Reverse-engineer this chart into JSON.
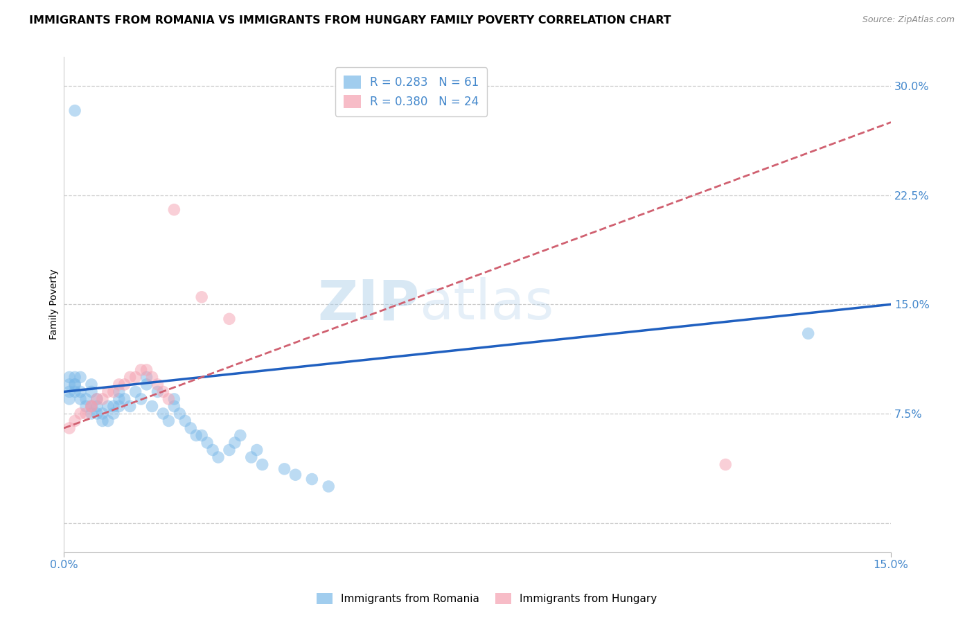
{
  "title": "IMMIGRANTS FROM ROMANIA VS IMMIGRANTS FROM HUNGARY FAMILY POVERTY CORRELATION CHART",
  "source": "Source: ZipAtlas.com",
  "ylabel": "Family Poverty",
  "yticks": [
    0.0,
    0.075,
    0.15,
    0.225,
    0.3
  ],
  "ytick_labels": [
    "",
    "7.5%",
    "15.0%",
    "22.5%",
    "30.0%"
  ],
  "xlim": [
    0.0,
    0.15
  ],
  "ylim": [
    -0.02,
    0.32
  ],
  "legend1_label": "R = 0.283   N = 61",
  "legend2_label": "R = 0.380   N = 24",
  "series1_label": "Immigrants from Romania",
  "series2_label": "Immigrants from Hungary",
  "series1_color": "#7ab8e8",
  "series2_color": "#f5a0b0",
  "line1_color": "#2060c0",
  "line2_color": "#d06070",
  "watermark_part1": "ZIP",
  "watermark_part2": "atlas",
  "romania_x": [
    0.001,
    0.001,
    0.001,
    0.001,
    0.002,
    0.002,
    0.002,
    0.002,
    0.003,
    0.003,
    0.003,
    0.004,
    0.004,
    0.005,
    0.005,
    0.005,
    0.005,
    0.006,
    0.006,
    0.006,
    0.007,
    0.007,
    0.008,
    0.008,
    0.009,
    0.009,
    0.01,
    0.01,
    0.01,
    0.011,
    0.012,
    0.013,
    0.014,
    0.015,
    0.015,
    0.016,
    0.017,
    0.018,
    0.019,
    0.02,
    0.02,
    0.021,
    0.022,
    0.023,
    0.024,
    0.025,
    0.026,
    0.027,
    0.028,
    0.03,
    0.031,
    0.032,
    0.034,
    0.035,
    0.036,
    0.04,
    0.042,
    0.045,
    0.048,
    0.135,
    0.002
  ],
  "romania_y": [
    0.085,
    0.09,
    0.095,
    0.1,
    0.09,
    0.095,
    0.095,
    0.1,
    0.085,
    0.09,
    0.1,
    0.08,
    0.085,
    0.075,
    0.08,
    0.09,
    0.095,
    0.075,
    0.08,
    0.085,
    0.07,
    0.075,
    0.07,
    0.08,
    0.075,
    0.08,
    0.08,
    0.085,
    0.09,
    0.085,
    0.08,
    0.09,
    0.085,
    0.095,
    0.1,
    0.08,
    0.09,
    0.075,
    0.07,
    0.08,
    0.085,
    0.075,
    0.07,
    0.065,
    0.06,
    0.06,
    0.055,
    0.05,
    0.045,
    0.05,
    0.055,
    0.06,
    0.045,
    0.05,
    0.04,
    0.037,
    0.033,
    0.03,
    0.025,
    0.13,
    0.283
  ],
  "hungary_x": [
    0.001,
    0.002,
    0.003,
    0.004,
    0.005,
    0.005,
    0.006,
    0.007,
    0.008,
    0.009,
    0.01,
    0.011,
    0.012,
    0.013,
    0.014,
    0.015,
    0.016,
    0.017,
    0.018,
    0.019,
    0.02,
    0.025,
    0.03,
    0.12
  ],
  "hungary_y": [
    0.065,
    0.07,
    0.075,
    0.075,
    0.08,
    0.08,
    0.085,
    0.085,
    0.09,
    0.09,
    0.095,
    0.095,
    0.1,
    0.1,
    0.105,
    0.105,
    0.1,
    0.095,
    0.09,
    0.085,
    0.215,
    0.155,
    0.14,
    0.04
  ],
  "background_color": "#ffffff",
  "grid_color": "#cccccc",
  "ytick_color": "#4488cc",
  "title_fontsize": 11.5,
  "marker_size": 160,
  "line1_x0": 0.0,
  "line1_y0": 0.09,
  "line1_x1": 0.15,
  "line1_y1": 0.15,
  "line2_x0": 0.0,
  "line2_y0": 0.065,
  "line2_x1": 0.15,
  "line2_y1": 0.275
}
